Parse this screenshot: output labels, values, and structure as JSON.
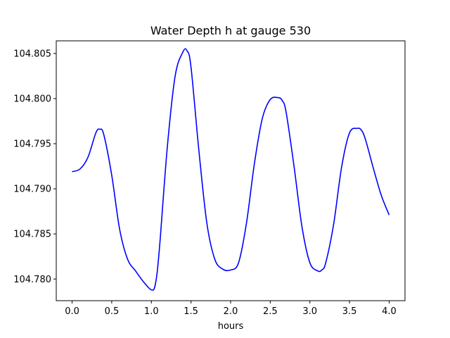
{
  "chart_data": {
    "type": "line",
    "title": "Water Depth h at gauge 530",
    "xlabel": "hours",
    "ylabel": "",
    "xlim": [
      -0.2,
      4.2
    ],
    "ylim": [
      104.7776,
      104.8064
    ],
    "xticks": [
      0.0,
      0.5,
      1.0,
      1.5,
      2.0,
      2.5,
      3.0,
      3.5,
      4.0
    ],
    "xtick_labels": [
      "0.0",
      "0.5",
      "1.0",
      "1.5",
      "2.0",
      "2.5",
      "3.0",
      "3.5",
      "4.0"
    ],
    "yticks": [
      104.78,
      104.785,
      104.79,
      104.795,
      104.8,
      104.805
    ],
    "ytick_labels": [
      "104.780",
      "104.785",
      "104.790",
      "104.795",
      "104.800",
      "104.805"
    ],
    "grid": false,
    "series": [
      {
        "color": "#0000ff",
        "x": [
          0.0,
          0.1,
          0.2,
          0.3,
          0.35,
          0.4,
          0.5,
          0.6,
          0.7,
          0.8,
          0.9,
          1.0,
          1.05,
          1.1,
          1.2,
          1.3,
          1.4,
          1.45,
          1.5,
          1.6,
          1.7,
          1.8,
          1.9,
          2.0,
          2.1,
          2.2,
          2.3,
          2.4,
          2.5,
          2.6,
          2.65,
          2.7,
          2.8,
          2.9,
          3.0,
          3.1,
          3.15,
          3.2,
          3.3,
          3.4,
          3.5,
          3.6,
          3.65,
          3.7,
          3.8,
          3.9,
          4.0
        ],
        "y": [
          104.7919,
          104.7922,
          104.7935,
          104.7962,
          104.7966,
          104.796,
          104.7915,
          104.7855,
          104.7822,
          104.7809,
          104.7797,
          104.7788,
          104.7794,
          104.7832,
          104.7945,
          104.8025,
          104.8052,
          104.8053,
          104.8035,
          104.7942,
          104.7862,
          104.7822,
          104.7811,
          104.781,
          104.7818,
          104.7862,
          104.7928,
          104.7978,
          104.7999,
          104.8001,
          104.7998,
          104.7985,
          104.7925,
          104.7858,
          104.7818,
          104.7809,
          104.781,
          104.7818,
          104.7861,
          104.7924,
          104.7962,
          104.7967,
          104.7965,
          104.7955,
          104.7923,
          104.7893,
          104.7871
        ]
      }
    ]
  },
  "colors": {
    "line": "#0000ff",
    "axes": "#000000",
    "background": "#ffffff"
  }
}
